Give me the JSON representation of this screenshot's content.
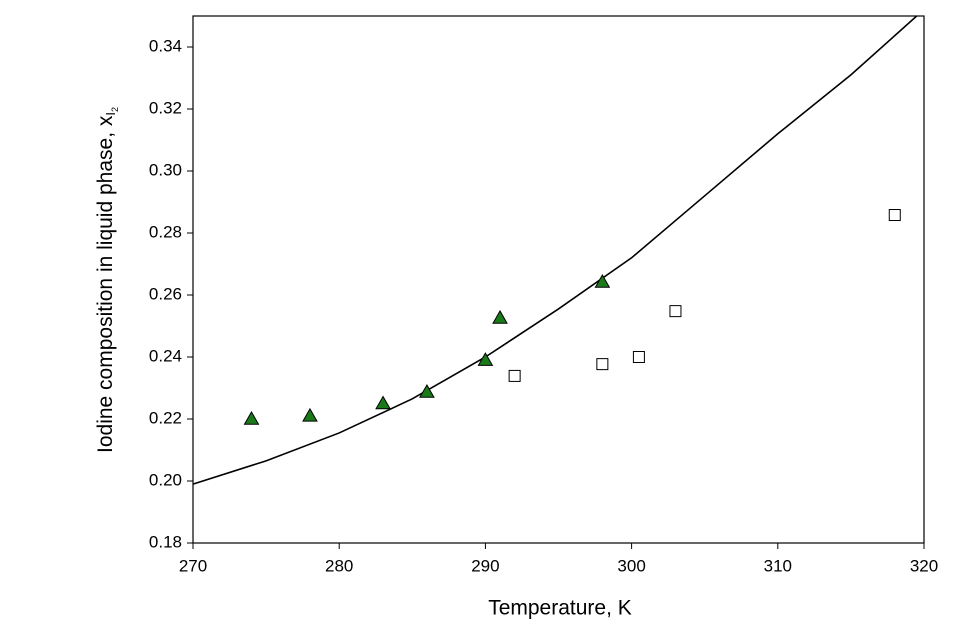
{
  "chart_data": {
    "type": "scatter",
    "x_label": "Temperature, K",
    "y_label": "Iodine composition in liquid phase, x",
    "y_label_sub": "I",
    "y_label_subsub": "2",
    "xlim": [
      270,
      320
    ],
    "xticks": [
      270,
      280,
      290,
      300,
      310,
      320
    ],
    "ylim": [
      0.18,
      0.35
    ],
    "yticks": [
      0.18,
      {
        "value": 0.2,
        "label": "0.20"
      },
      0.22,
      0.24,
      0.26,
      0.28,
      {
        "value": 0.3,
        "label": "0.30"
      },
      0.32,
      0.34
    ],
    "grid": false,
    "series": [
      {
        "style": "line",
        "color": "#000000",
        "x": [
          270,
          275,
          280,
          285,
          290,
          295,
          300,
          305,
          310,
          315,
          319.5
        ],
        "values": [
          0.199,
          0.2065,
          0.2155,
          0.2265,
          0.24,
          0.2555,
          0.272,
          0.292,
          0.312,
          0.331,
          0.35
        ]
      },
      {
        "style": "triangle",
        "color": "#1a7a1a",
        "x": [
          274,
          278,
          283,
          286,
          290,
          291,
          298
        ],
        "values": [
          0.22,
          0.221,
          0.225,
          0.2287,
          0.239,
          0.2526,
          0.2642
        ]
      },
      {
        "style": "square",
        "color": "#ffffff",
        "x": [
          292,
          298,
          300.5,
          303,
          318
        ],
        "values": [
          0.2339,
          0.2377,
          0.24,
          0.2548,
          0.2858
        ]
      }
    ]
  }
}
